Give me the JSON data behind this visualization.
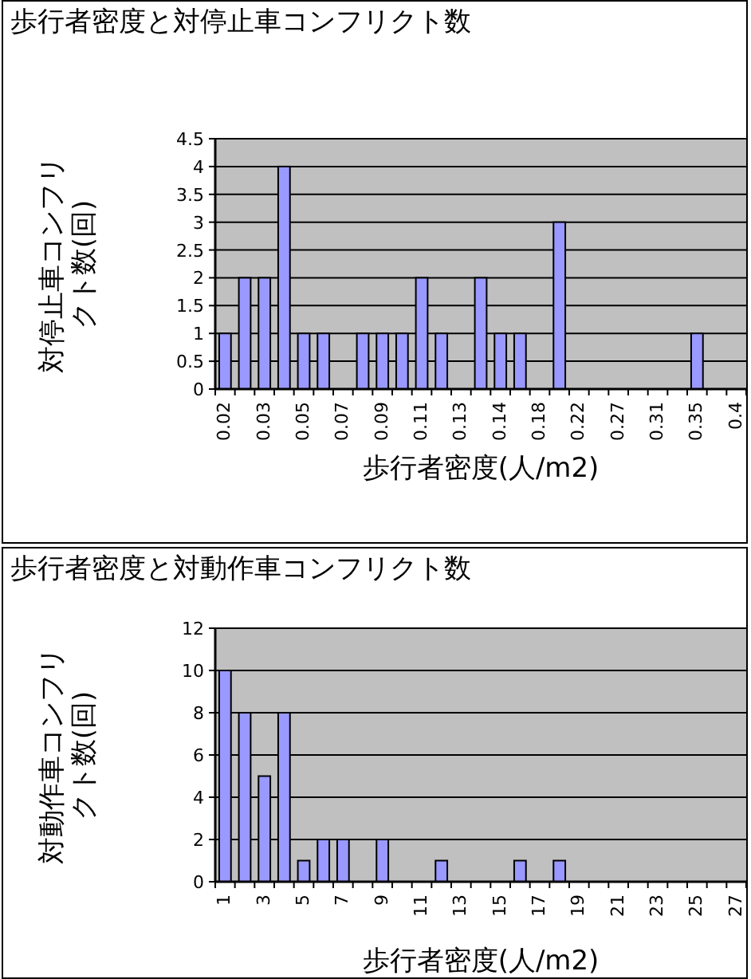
{
  "chart_data": [
    {
      "type": "bar",
      "title": "歩行者密度と対停止車コンフリクト数",
      "xlabel": "歩行者密度(人/m2)",
      "ylabel": "対停止車コンフリクト数(回)",
      "categories": [
        "0.02",
        null,
        "0.03",
        null,
        "0.05",
        null,
        "0.07",
        null,
        "0.09",
        null,
        "0.11",
        null,
        "0.13",
        null,
        "0.14",
        null,
        "0.18",
        null,
        "0.22",
        null,
        "0.27",
        null,
        "0.31",
        null,
        "0.35",
        null,
        "0.4"
      ],
      "values": [
        1,
        2,
        2,
        4,
        1,
        1,
        0,
        1,
        1,
        1,
        2,
        1,
        0,
        2,
        1,
        1,
        0,
        3,
        0,
        0,
        0,
        0,
        0,
        0,
        1,
        0,
        0
      ],
      "color": "#9999ff",
      "ylim": [
        0,
        4.5
      ],
      "yticks": [
        0,
        0.5,
        1,
        1.5,
        2,
        2.5,
        3,
        3.5,
        4,
        4.5
      ],
      "grid": "y"
    },
    {
      "type": "bar",
      "title": "歩行者密度と対動作車コンフリクト数",
      "xlabel": "歩行者密度(人/m2)",
      "ylabel": "対動作車コンフリクト数(回)",
      "categories": [
        "1",
        null,
        "3",
        null,
        "5",
        null,
        "7",
        null,
        "9",
        null,
        "11",
        null,
        "13",
        null,
        "15",
        null,
        "17",
        null,
        "19",
        null,
        "21",
        null,
        "23",
        null,
        "25",
        null,
        "27"
      ],
      "values": [
        10,
        8,
        5,
        8,
        1,
        2,
        2,
        0,
        2,
        0,
        0,
        1,
        0,
        0,
        0,
        1,
        0,
        1,
        0,
        0,
        0,
        0,
        0,
        0,
        0,
        0,
        0
      ],
      "color": "#9999ff",
      "ylim": [
        0,
        12
      ],
      "yticks": [
        0,
        2,
        4,
        6,
        8,
        10,
        12
      ],
      "grid": "y"
    }
  ]
}
